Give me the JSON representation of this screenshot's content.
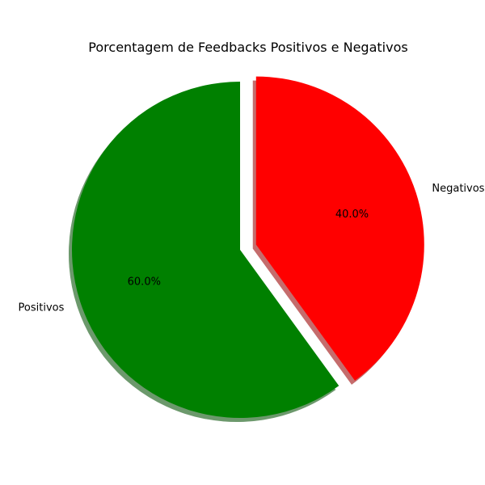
{
  "chart_data": {
    "type": "pie",
    "title": "Porcentagem de Feedbacks Positivos e Negativos",
    "categories": [
      "Positivos",
      "Negativos"
    ],
    "values": [
      60.0,
      40.0
    ],
    "percent_labels": [
      "60.0%",
      "40.0%"
    ],
    "colors": [
      "#008000",
      "#ff0000"
    ],
    "exploded": [
      "Negativos"
    ],
    "shadow": true,
    "start_angle_deg": 90,
    "direction": "counterclockwise",
    "legend": "none"
  }
}
